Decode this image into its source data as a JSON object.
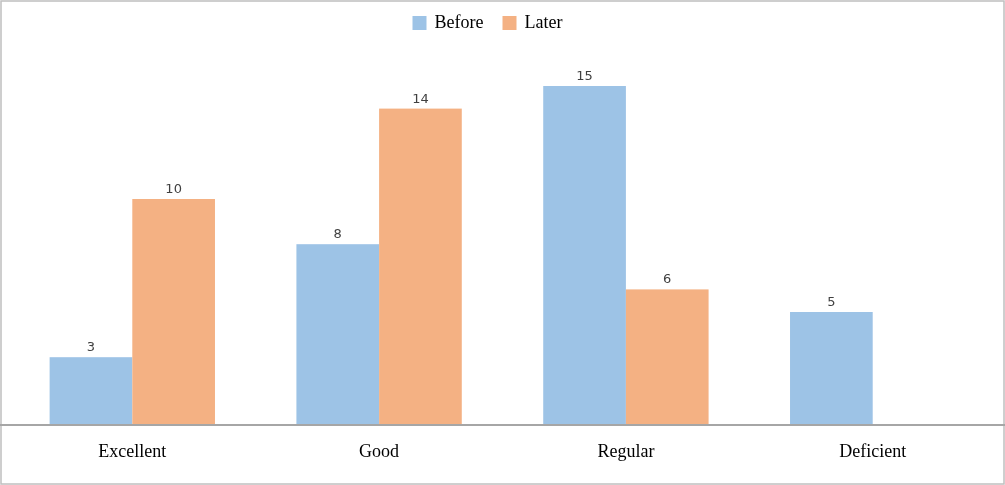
{
  "chart_data": {
    "type": "bar",
    "categories": [
      "Excellent",
      "Good",
      "Regular",
      "Deficient"
    ],
    "series": [
      {
        "name": "Before",
        "color": "#9dc3e6",
        "values": [
          3,
          8,
          15,
          5
        ]
      },
      {
        "name": "Later",
        "color": "#f4b183",
        "values": [
          10,
          14,
          6,
          null
        ]
      }
    ],
    "data_labels": true,
    "legend": "top"
  }
}
